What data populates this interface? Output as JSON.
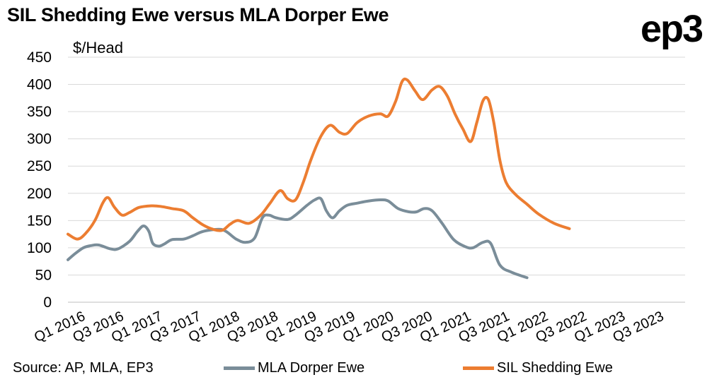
{
  "header": {
    "title": "SIL Shedding Ewe versus MLA Dorper Ewe",
    "logo": "ep3"
  },
  "footer": {
    "source": "Source: AP, MLA, EP3"
  },
  "colors": {
    "dorper": "#7a8d99",
    "sil": "#ec7d31",
    "grid": "#d9d9d9"
  },
  "chart_data": {
    "type": "line",
    "title": "SIL Shedding Ewe versus MLA Dorper Ewe",
    "ylabel": "$/Head",
    "xlabel": "",
    "ylim": [
      0,
      450
    ],
    "yticks": [
      0,
      50,
      100,
      150,
      200,
      250,
      300,
      350,
      400,
      450
    ],
    "grid": true,
    "legend": "bottom",
    "xlim": [
      2016.0,
      2024.0
    ],
    "x_tick_labels": [
      {
        "label": "Q1 2016",
        "x": 2016.0
      },
      {
        "label": "Q3 2016",
        "x": 2016.5
      },
      {
        "label": "Q1 2017",
        "x": 2017.0
      },
      {
        "label": "Q3 2017",
        "x": 2017.5
      },
      {
        "label": "Q1 2018",
        "x": 2018.0
      },
      {
        "label": "Q3 2018",
        "x": 2018.5
      },
      {
        "label": "Q1 2019",
        "x": 2019.0
      },
      {
        "label": "Q3 2019",
        "x": 2019.5
      },
      {
        "label": "Q1 2020",
        "x": 2020.0
      },
      {
        "label": "Q3 2020",
        "x": 2020.5
      },
      {
        "label": "Q1 2021",
        "x": 2021.0
      },
      {
        "label": "Q3 2021",
        "x": 2021.5
      },
      {
        "label": "Q1 2022",
        "x": 2022.0
      },
      {
        "label": "Q3 2022",
        "x": 2022.5
      },
      {
        "label": "Q1 2023",
        "x": 2023.0
      },
      {
        "label": "Q3 2023",
        "x": 2023.5
      }
    ],
    "series": [
      {
        "name": "MLA Dorper Ewe",
        "key": "dorper",
        "points": [
          [
            2016.0,
            78
          ],
          [
            2016.1,
            90
          ],
          [
            2016.2,
            100
          ],
          [
            2016.3,
            104
          ],
          [
            2016.4,
            105
          ],
          [
            2016.55,
            98
          ],
          [
            2016.65,
            98
          ],
          [
            2016.8,
            112
          ],
          [
            2016.9,
            130
          ],
          [
            2016.98,
            140
          ],
          [
            2017.05,
            130
          ],
          [
            2017.1,
            108
          ],
          [
            2017.18,
            103
          ],
          [
            2017.25,
            107
          ],
          [
            2017.35,
            115
          ],
          [
            2017.5,
            116
          ],
          [
            2017.62,
            122
          ],
          [
            2017.75,
            130
          ],
          [
            2017.95,
            134
          ],
          [
            2018.05,
            130
          ],
          [
            2018.18,
            116
          ],
          [
            2018.3,
            110
          ],
          [
            2018.42,
            118
          ],
          [
            2018.52,
            155
          ],
          [
            2018.6,
            160
          ],
          [
            2018.7,
            155
          ],
          [
            2018.85,
            152
          ],
          [
            2018.95,
            160
          ],
          [
            2019.1,
            178
          ],
          [
            2019.2,
            188
          ],
          [
            2019.28,
            190
          ],
          [
            2019.35,
            168
          ],
          [
            2019.43,
            155
          ],
          [
            2019.52,
            168
          ],
          [
            2019.62,
            178
          ],
          [
            2019.75,
            182
          ],
          [
            2019.9,
            186
          ],
          [
            2020.05,
            188
          ],
          [
            2020.15,
            186
          ],
          [
            2020.28,
            172
          ],
          [
            2020.42,
            166
          ],
          [
            2020.52,
            166
          ],
          [
            2020.62,
            172
          ],
          [
            2020.72,
            168
          ],
          [
            2020.85,
            145
          ],
          [
            2021.0,
            115
          ],
          [
            2021.15,
            102
          ],
          [
            2021.25,
            100
          ],
          [
            2021.38,
            110
          ],
          [
            2021.48,
            108
          ],
          [
            2021.6,
            68
          ],
          [
            2021.75,
            55
          ],
          [
            2021.95,
            45
          ]
        ]
      },
      {
        "name": "SIL Shedding Ewe",
        "key": "sil",
        "points": [
          [
            2016.0,
            125
          ],
          [
            2016.12,
            116
          ],
          [
            2016.22,
            125
          ],
          [
            2016.35,
            150
          ],
          [
            2016.45,
            182
          ],
          [
            2016.52,
            192
          ],
          [
            2016.6,
            175
          ],
          [
            2016.7,
            160
          ],
          [
            2016.8,
            165
          ],
          [
            2016.92,
            174
          ],
          [
            2017.08,
            177
          ],
          [
            2017.2,
            176
          ],
          [
            2017.35,
            172
          ],
          [
            2017.5,
            168
          ],
          [
            2017.62,
            155
          ],
          [
            2017.75,
            142
          ],
          [
            2017.88,
            134
          ],
          [
            2018.0,
            132
          ],
          [
            2018.1,
            143
          ],
          [
            2018.2,
            150
          ],
          [
            2018.35,
            145
          ],
          [
            2018.5,
            160
          ],
          [
            2018.62,
            182
          ],
          [
            2018.75,
            205
          ],
          [
            2018.85,
            190
          ],
          [
            2018.95,
            188
          ],
          [
            2019.05,
            220
          ],
          [
            2019.15,
            262
          ],
          [
            2019.28,
            305
          ],
          [
            2019.4,
            325
          ],
          [
            2019.52,
            312
          ],
          [
            2019.62,
            310
          ],
          [
            2019.75,
            330
          ],
          [
            2019.9,
            342
          ],
          [
            2020.05,
            346
          ],
          [
            2020.15,
            342
          ],
          [
            2020.25,
            370
          ],
          [
            2020.33,
            405
          ],
          [
            2020.4,
            408
          ],
          [
            2020.5,
            388
          ],
          [
            2020.6,
            372
          ],
          [
            2020.72,
            390
          ],
          [
            2020.82,
            396
          ],
          [
            2020.92,
            378
          ],
          [
            2021.02,
            345
          ],
          [
            2021.12,
            318
          ],
          [
            2021.22,
            295
          ],
          [
            2021.3,
            330
          ],
          [
            2021.38,
            370
          ],
          [
            2021.45,
            372
          ],
          [
            2021.52,
            330
          ],
          [
            2021.6,
            260
          ],
          [
            2021.68,
            220
          ],
          [
            2021.8,
            198
          ],
          [
            2021.95,
            180
          ],
          [
            2022.1,
            162
          ],
          [
            2022.3,
            145
          ],
          [
            2022.5,
            135
          ]
        ]
      }
    ]
  }
}
